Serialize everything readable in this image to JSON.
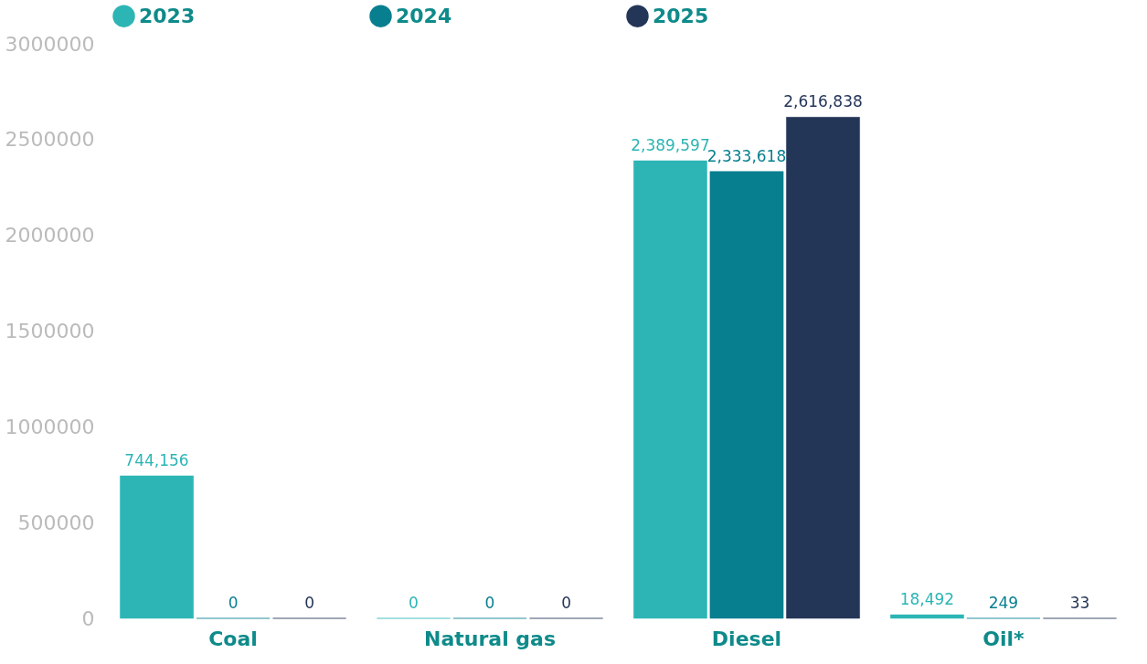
{
  "chart_data": {
    "type": "bar",
    "categories": [
      "Coal",
      "Natural gas",
      "Diesel",
      "Oil*"
    ],
    "series": [
      {
        "name": "2023",
        "color": "#2db5b5",
        "values": [
          744156,
          0,
          2389597,
          18492
        ],
        "value_labels": [
          "744,156",
          "0",
          "2,389,597",
          "18,492"
        ]
      },
      {
        "name": "2024",
        "color": "#087f8f",
        "values": [
          0,
          0,
          2333618,
          249
        ],
        "value_labels": [
          "0",
          "0",
          "2,333,618",
          "249"
        ]
      },
      {
        "name": "2025",
        "color": "#243658",
        "values": [
          0,
          0,
          2616838,
          33
        ],
        "value_labels": [
          "0",
          "0",
          "2,616,838",
          "33"
        ]
      }
    ],
    "ylim": [
      0,
      3000000
    ],
    "yticks": [
      0,
      500000,
      1000000,
      1500000,
      2000000,
      2500000,
      3000000
    ],
    "legend": "top",
    "grid": false
  }
}
